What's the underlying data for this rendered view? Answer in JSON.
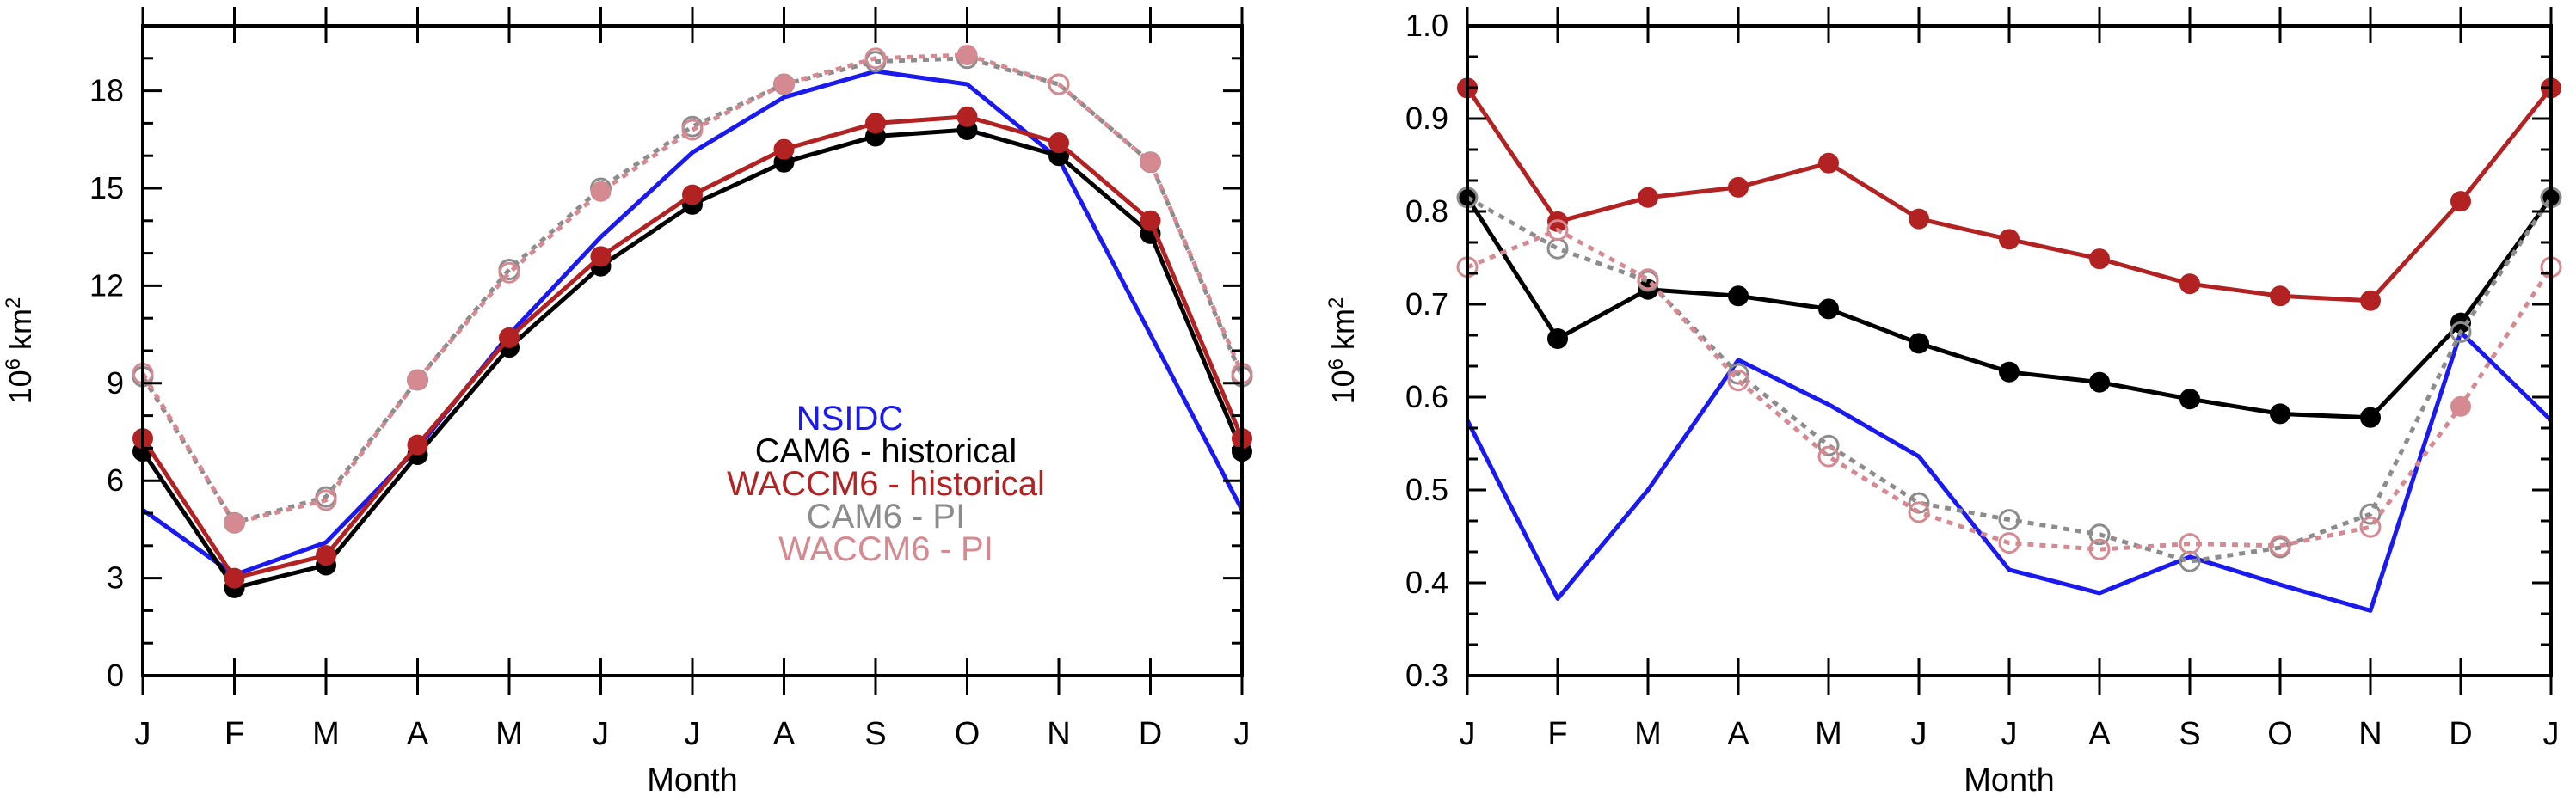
{
  "chart_data": [
    {
      "type": "line",
      "categories": [
        "J",
        "F",
        "M",
        "A",
        "M",
        "J",
        "J",
        "A",
        "S",
        "O",
        "N",
        "D",
        "J"
      ],
      "xlabel": "Month",
      "ylabel": {
        "base": "10",
        "exp": "6",
        "unit": " km",
        "unit_exp": "2"
      },
      "ylim": [
        0,
        20
      ],
      "yticks": [
        0,
        3,
        6,
        9,
        12,
        15,
        18
      ],
      "ytick_labels": [
        "0",
        "3",
        "6",
        "9",
        "12",
        "15",
        "18"
      ],
      "legend_position": "center-right",
      "legend": [
        {
          "text": "NSIDC",
          "color": "#1a1af0"
        },
        {
          "text": "CAM6 - historical",
          "color": "#000000"
        },
        {
          "text": "WACCM6 - historical",
          "color": "#b22222"
        },
        {
          "text": "CAM6 - PI",
          "color": "#8c8c8c"
        },
        {
          "text": "WACCM6 - PI",
          "color": "#d58a91"
        }
      ],
      "series": [
        {
          "key": "nsidc",
          "color": "#1a1af0",
          "dash": false,
          "marker": "none",
          "values": [
            5.1,
            3.1,
            4.1,
            7.0,
            10.5,
            13.5,
            16.1,
            17.8,
            18.6,
            18.2,
            15.9,
            10.5,
            5.1
          ]
        },
        {
          "key": "cam6_hist",
          "color": "#000000",
          "dash": false,
          "marker": "filled",
          "values": [
            6.9,
            2.7,
            3.4,
            6.8,
            10.1,
            12.6,
            14.5,
            15.8,
            16.6,
            16.8,
            16.0,
            13.6,
            6.9
          ]
        },
        {
          "key": "waccm6_hist",
          "color": "#b22222",
          "dash": false,
          "marker": "filled",
          "values": [
            7.3,
            3.0,
            3.7,
            7.1,
            10.4,
            12.9,
            14.8,
            16.2,
            17.0,
            17.2,
            16.4,
            14.0,
            7.3
          ]
        },
        {
          "key": "cam6_pi",
          "color": "#8c8c8c",
          "dash": true,
          "marker": "open",
          "values": [
            9.2,
            4.7,
            5.5,
            9.1,
            12.5,
            15.0,
            16.9,
            18.2,
            18.9,
            19.0,
            18.2,
            15.8,
            9.2
          ]
        },
        {
          "key": "waccm6_pi",
          "color": "#d58a91",
          "dash": true,
          "marker": "mixed",
          "values": [
            9.3,
            4.7,
            5.4,
            9.1,
            12.4,
            14.9,
            16.8,
            18.2,
            19.0,
            19.1,
            18.2,
            15.8,
            9.3
          ]
        }
      ]
    },
    {
      "type": "line",
      "categories": [
        "J",
        "F",
        "M",
        "A",
        "M",
        "J",
        "J",
        "A",
        "S",
        "O",
        "N",
        "D",
        "J"
      ],
      "xlabel": "Month",
      "ylabel": {
        "base": "10",
        "exp": "6",
        "unit": " km",
        "unit_exp": "2"
      },
      "ylim": [
        0.3,
        1.0
      ],
      "yticks": [
        0.3,
        0.4,
        0.5,
        0.6,
        0.7,
        0.8,
        0.9,
        1.0
      ],
      "ytick_labels": [
        "0.3",
        "0.4",
        "0.5",
        "0.6",
        "0.7",
        "0.8",
        "0.9",
        "1.0"
      ],
      "series": [
        {
          "key": "nsidc",
          "color": "#1a1af0",
          "dash": false,
          "marker": "none",
          "values": [
            0.575,
            0.383,
            0.5,
            0.64,
            0.592,
            0.536,
            0.414,
            0.389,
            0.428,
            0.398,
            0.37,
            0.67,
            0.575
          ]
        },
        {
          "key": "cam6_hist",
          "color": "#000000",
          "dash": false,
          "marker": "filled",
          "values": [
            0.815,
            0.663,
            0.716,
            0.709,
            0.695,
            0.658,
            0.627,
            0.616,
            0.598,
            0.582,
            0.578,
            0.68,
            0.815
          ]
        },
        {
          "key": "waccm6_hist",
          "color": "#b22222",
          "dash": false,
          "marker": "filled",
          "values": [
            0.933,
            0.789,
            0.815,
            0.826,
            0.852,
            0.792,
            0.77,
            0.749,
            0.722,
            0.709,
            0.704,
            0.811,
            0.933
          ]
        },
        {
          "key": "cam6_pi",
          "color": "#8c8c8c",
          "dash": true,
          "marker": "open",
          "values": [
            0.815,
            0.76,
            0.725,
            0.625,
            0.548,
            0.486,
            0.468,
            0.452,
            0.423,
            0.438,
            0.474,
            0.67,
            0.815
          ]
        },
        {
          "key": "waccm6_pi",
          "color": "#d58a91",
          "dash": true,
          "marker": "mixed",
          "values": [
            0.74,
            0.78,
            0.727,
            0.618,
            0.536,
            0.476,
            0.443,
            0.436,
            0.442,
            0.44,
            0.46,
            0.59,
            0.74
          ]
        }
      ]
    }
  ]
}
